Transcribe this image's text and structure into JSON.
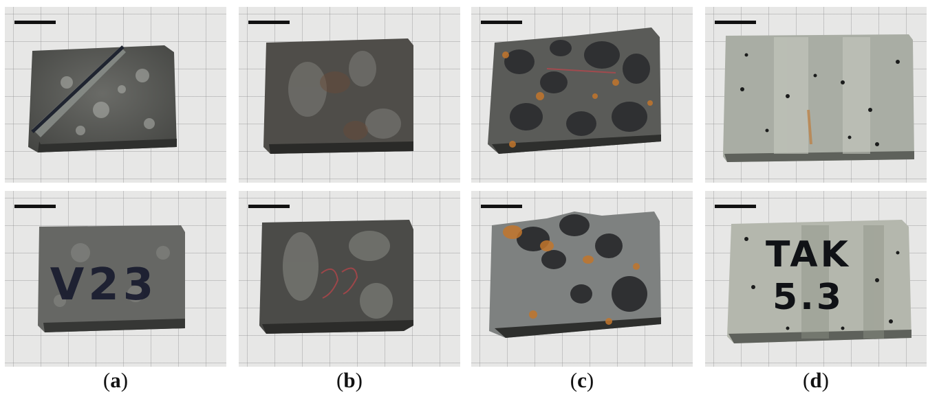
{
  "panels": [
    {
      "id": "a",
      "caption_open": "(",
      "caption_letter": "a",
      "caption_close": ")",
      "sample_color": "#5a5b58",
      "markings": {
        "top": "",
        "bottom": "V23"
      }
    },
    {
      "id": "b",
      "caption_open": "(",
      "caption_letter": "b",
      "caption_close": ")",
      "sample_color": "#4e4d49",
      "markings": {
        "top": "",
        "bottom": ""
      }
    },
    {
      "id": "c",
      "caption_open": "(",
      "caption_letter": "c",
      "caption_close": ")",
      "sample_color": "#5c5d5a",
      "markings": {
        "top": "",
        "bottom": ""
      }
    },
    {
      "id": "d",
      "caption_open": "(",
      "caption_letter": "d",
      "caption_close": ")",
      "sample_color": "#a7aba1",
      "markings": {
        "top": "",
        "bottom": "TAK 5.3"
      }
    }
  ]
}
